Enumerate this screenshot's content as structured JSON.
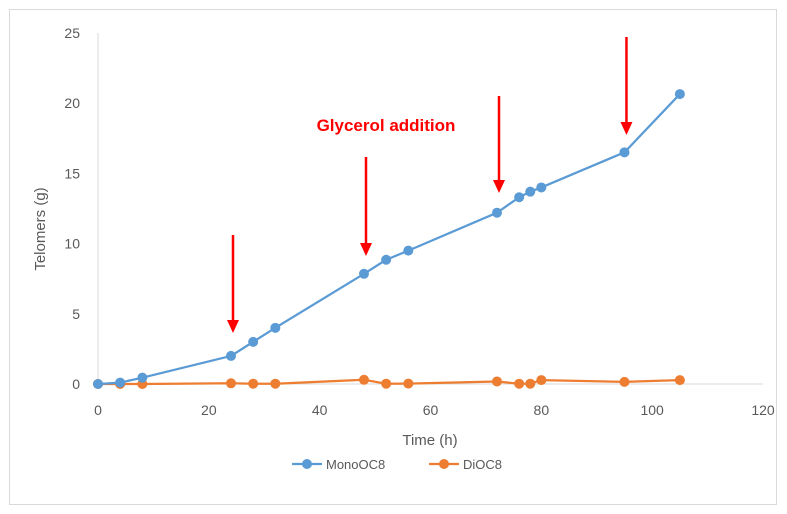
{
  "chart_data": {
    "type": "line",
    "title": "",
    "xlabel": "Time (h)",
    "ylabel": "Telomers (g)",
    "xlim": [
      0,
      120
    ],
    "ylim": [
      0,
      25
    ],
    "xticks": [
      0,
      20,
      40,
      60,
      80,
      100,
      120
    ],
    "yticks": [
      0,
      5,
      10,
      15,
      20,
      25
    ],
    "grid": false,
    "legend_position": "bottom",
    "series": [
      {
        "name": "MonoOC8",
        "color": "#5b9bd5",
        "points": [
          [
            0,
            0
          ],
          [
            4,
            0.1
          ],
          [
            8,
            0.45
          ],
          [
            24,
            2.0
          ],
          [
            28,
            3.0
          ],
          [
            32,
            4.0
          ],
          [
            48,
            7.85
          ],
          [
            52,
            8.85
          ],
          [
            56,
            9.5
          ],
          [
            72,
            12.2
          ],
          [
            76,
            13.3
          ],
          [
            78,
            13.7
          ],
          [
            80,
            14.0
          ],
          [
            95,
            16.5
          ],
          [
            105,
            20.65
          ]
        ]
      },
      {
        "name": "DiOC8",
        "color": "#ed7d31",
        "points": [
          [
            0,
            0
          ],
          [
            4,
            0
          ],
          [
            8,
            0
          ],
          [
            24,
            0.05
          ],
          [
            28,
            0.02
          ],
          [
            32,
            0.02
          ],
          [
            48,
            0.3
          ],
          [
            52,
            0.02
          ],
          [
            56,
            0.03
          ],
          [
            72,
            0.18
          ],
          [
            76,
            0.02
          ],
          [
            78,
            0.02
          ],
          [
            80,
            0.28
          ],
          [
            95,
            0.15
          ],
          [
            105,
            0.28
          ]
        ]
      }
    ],
    "annotation": {
      "text": "Glycerol addition",
      "color": "#ff0000",
      "arrows_at_x": [
        24,
        48,
        72,
        95
      ]
    }
  }
}
